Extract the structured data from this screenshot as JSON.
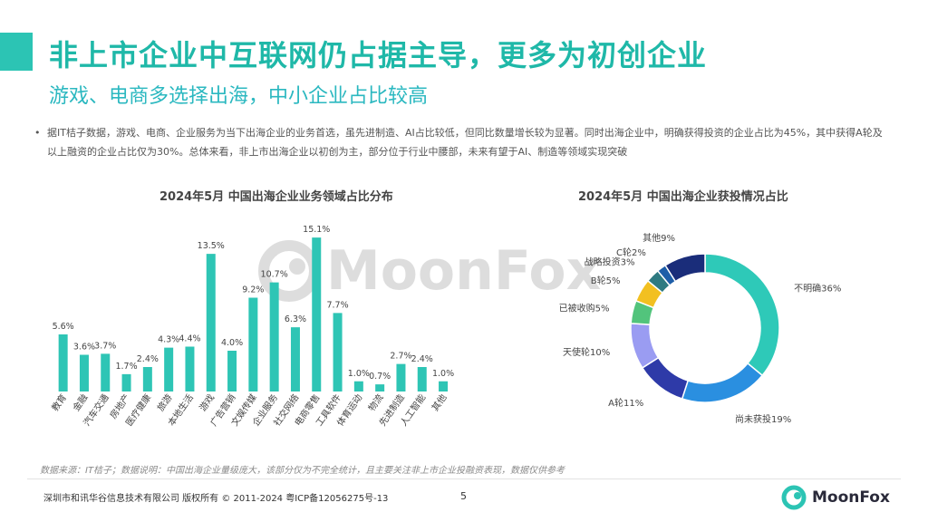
{
  "header": {
    "title": "非上市企业中互联网仍占据主导，更多为初创企业",
    "subtitle": "游戏、电商多选择出海，中小企业占比较高",
    "bullet_marker": "•",
    "bullet": "据IT桔子数据，游戏、电商、企业服务为当下出海企业的业务首选，虽先进制造、AI占比较低，但同比数量增长较为显著。同时出海企业中，明确获得投资的企业占比为45%，其中获得A轮及以上融资的企业占比仅为30%。总体来看，非上市出海企业以初创为主，部分位于行业中腰部，未来有望于AI、制造等领域实现突破"
  },
  "colors": {
    "accent": "#2cc4b4",
    "bar": "#2ec5b5"
  },
  "watermark": {
    "text": "MoonFox"
  },
  "chart_data": [
    {
      "type": "bar",
      "title": "2024年5月 中国出海企业业务领域占比分布",
      "categories": [
        "教育",
        "金融",
        "汽车交通",
        "房地产",
        "医疗健康",
        "旅游",
        "本地生活",
        "游戏",
        "广告营销",
        "文娱传媒",
        "企业服务",
        "社交网络",
        "电商零售",
        "工具软件",
        "体育运动",
        "物流",
        "先进制造",
        "人工智能",
        "其他"
      ],
      "values": [
        5.6,
        3.6,
        3.7,
        1.7,
        2.4,
        4.3,
        4.4,
        13.5,
        4.0,
        9.2,
        10.7,
        6.3,
        15.1,
        7.7,
        1.0,
        0.7,
        2.7,
        2.4,
        1.0
      ],
      "labels": [
        "5.6%",
        "3.6%",
        "3.7%",
        "1.7%",
        "2.4%",
        "4.3%",
        "4.4%",
        "13.5%",
        "4.0%",
        "9.2%",
        "10.7%",
        "6.3%",
        "15.1%",
        "7.7%",
        "1.0%",
        "0.7%",
        "2.7%",
        "2.4%",
        "1.0%"
      ],
      "ylim": [
        0,
        16
      ]
    },
    {
      "type": "pie",
      "title": "2024年5月 中国出海企业获投情况占比",
      "categories": [
        "不明确",
        "尚未获投",
        "A轮",
        "天使轮",
        "已被收购",
        "B轮",
        "战略投资",
        "C轮",
        "其他"
      ],
      "values": [
        36,
        19,
        11,
        10,
        5,
        5,
        3,
        2,
        9
      ],
      "labels": [
        "不明确36%",
        "尚未获投19%",
        "A轮11%",
        "天使轮10%",
        "已被收购5%",
        "B轮5%",
        "战略投资3%",
        "C轮2%",
        "其他9%"
      ],
      "colors": [
        "#2ec9b8",
        "#2a8fe0",
        "#2e3aa8",
        "#9a9cf2",
        "#52c47c",
        "#f2c021",
        "#2e7a82",
        "#1e5ea8",
        "#1a2d7a"
      ]
    }
  ],
  "footer": {
    "source": "数据来源：IT桔子；数据说明：中国出海企业量级庞大，该部分仅为不完全统计，且主要关注非上市企业投融资表现，数据仅供参考",
    "copyright": "深圳市和讯华谷信息技术有限公司 版权所有 © 2011-2024 粤ICP备12056275号-13",
    "page": "5",
    "logo_text": "MoonFox"
  }
}
